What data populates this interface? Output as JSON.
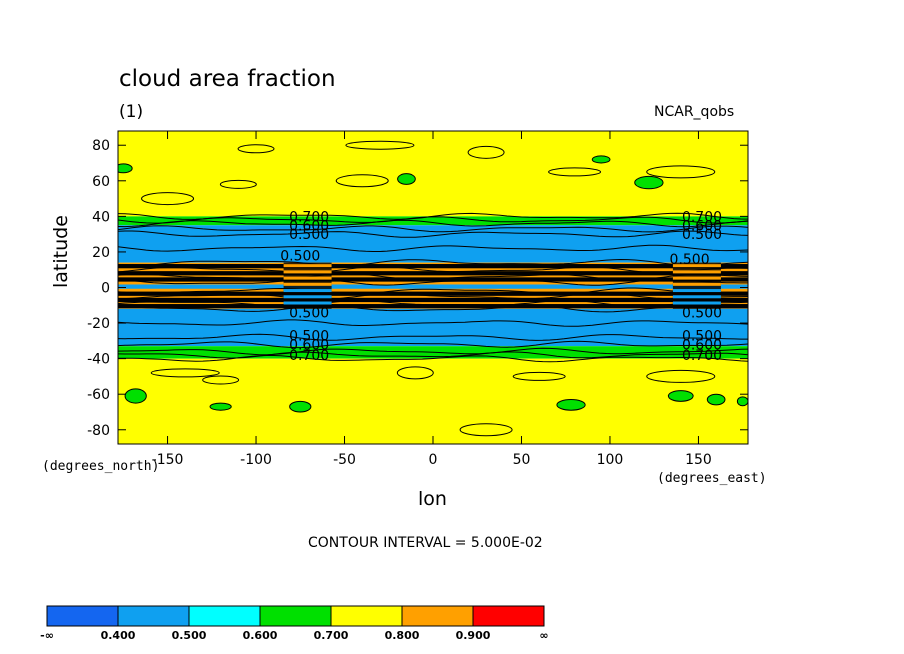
{
  "chart_data": {
    "type": "heatmap",
    "title": "cloud area fraction",
    "subtitle": "(1)",
    "dataset": "NCAR_qobs",
    "xlabel": "lon",
    "ylabel": "latitude",
    "x_units": "(degrees_east)",
    "y_units": "(degrees_north)",
    "xlim": [
      -178,
      178
    ],
    "ylim": [
      -88,
      88
    ],
    "x_ticks": [
      -150,
      -100,
      -50,
      0,
      50,
      100,
      150
    ],
    "x_tick_labels": [
      "-150",
      "-100",
      "-50",
      "0",
      "50",
      "100",
      "150"
    ],
    "y_ticks": [
      80,
      60,
      40,
      20,
      0,
      -20,
      -40,
      -60,
      -80
    ],
    "y_tick_labels": [
      "80",
      "60",
      "40",
      "20",
      "0",
      "-20",
      "-40",
      "-60",
      "-80"
    ],
    "contour_interval": "CONTOUR INTERVAL = 5.000E-02",
    "colorbar": {
      "colors": [
        "#1466f0",
        "#0fa0f0",
        "#00ffff",
        "#00e000",
        "#ffff00",
        "#ffa000",
        "#ff0000"
      ],
      "labels": [
        "-∞",
        "0.400",
        "0.500",
        "0.600",
        "0.700",
        "0.800",
        "0.900",
        "∞"
      ]
    },
    "zonal_bands": [
      {
        "lat_max": 88,
        "lat_min": 40,
        "level": 0.75
      },
      {
        "lat_max": 40,
        "lat_min": 35,
        "level": 0.65
      },
      {
        "lat_max": 35,
        "lat_min": 14,
        "level": 0.45
      },
      {
        "lat_max": 14,
        "lat_min": -12,
        "level": 0.85
      },
      {
        "lat_max": -12,
        "lat_min": -33,
        "level": 0.45
      },
      {
        "lat_max": -33,
        "lat_min": -40,
        "level": 0.65
      },
      {
        "lat_max": -40,
        "lat_min": -88,
        "level": 0.75
      }
    ],
    "contour_lines": [
      {
        "lat": 40,
        "level": 0.7
      },
      {
        "lat": 38,
        "level": 0.65
      },
      {
        "lat": 36,
        "level": 0.6
      },
      {
        "lat": 33,
        "level": 0.55
      },
      {
        "lat": 30,
        "level": 0.5
      },
      {
        "lat": 22,
        "level": 0.45
      },
      {
        "lat": 14,
        "level": 0.5
      },
      {
        "lat": 10,
        "level": 0.6
      },
      {
        "lat": 6,
        "level": 0.7
      },
      {
        "lat": 3,
        "level": 0.8
      },
      {
        "lat": -2,
        "level": 0.8
      },
      {
        "lat": -5,
        "level": 0.7
      },
      {
        "lat": -9,
        "level": 0.6
      },
      {
        "lat": -12,
        "level": 0.5
      },
      {
        "lat": -20,
        "level": 0.45
      },
      {
        "lat": -28,
        "level": 0.5
      },
      {
        "lat": -32,
        "level": 0.55
      },
      {
        "lat": -36,
        "level": 0.6
      },
      {
        "lat": -38,
        "level": 0.65
      },
      {
        "lat": -40,
        "level": 0.7
      }
    ],
    "contour_labels": [
      {
        "lon": -70,
        "lat": 40,
        "text": "0.700"
      },
      {
        "lon": -70,
        "lat": 35,
        "text": "0.600"
      },
      {
        "lon": -70,
        "lat": 30,
        "text": "0.500"
      },
      {
        "lon": -75,
        "lat": 18,
        "text": "0.500"
      },
      {
        "lon": -70,
        "lat": -14,
        "text": "0.500"
      },
      {
        "lon": -70,
        "lat": -27,
        "text": "0.500"
      },
      {
        "lon": -70,
        "lat": -32,
        "text": "0.600"
      },
      {
        "lon": -70,
        "lat": -38,
        "text": "0.700"
      },
      {
        "lon": 152,
        "lat": 40,
        "text": "0.700"
      },
      {
        "lon": 152,
        "lat": 35,
        "text": "0.600"
      },
      {
        "lon": 152,
        "lat": 30,
        "text": "0.500"
      },
      {
        "lon": 145,
        "lat": 16,
        "text": "0.500"
      },
      {
        "lon": 152,
        "lat": -14,
        "text": "0.500"
      },
      {
        "lon": 152,
        "lat": -27,
        "text": "0.500"
      },
      {
        "lon": 152,
        "lat": -32,
        "text": "0.600"
      },
      {
        "lon": 152,
        "lat": -38,
        "text": "0.700"
      }
    ],
    "label_clusters": [
      {
        "lon": -72,
        "lat_min": -12,
        "lat_max": 14
      },
      {
        "lon": 148,
        "lat_min": -12,
        "lat_max": 14
      }
    ],
    "patches": [
      {
        "lon": -175,
        "lat": 67,
        "rlon": 5,
        "rlat": 2.5,
        "level": 0.65
      },
      {
        "lon": -15,
        "lat": 61,
        "rlon": 5,
        "rlat": 3,
        "level": 0.65
      },
      {
        "lon": 95,
        "lat": 72,
        "rlon": 5,
        "rlat": 2,
        "level": 0.65
      },
      {
        "lon": 122,
        "lat": 59,
        "rlon": 8,
        "rlat": 3.5,
        "level": 0.65
      },
      {
        "lon": -168,
        "lat": -61,
        "rlon": 6,
        "rlat": 4,
        "level": 0.65
      },
      {
        "lon": -120,
        "lat": -67,
        "rlon": 6,
        "rlat": 2,
        "level": 0.65
      },
      {
        "lon": -75,
        "lat": -67,
        "rlon": 6,
        "rlat": 3,
        "level": 0.65
      },
      {
        "lon": 78,
        "lat": -66,
        "rlon": 8,
        "rlat": 3,
        "level": 0.65
      },
      {
        "lon": 140,
        "lat": -61,
        "rlon": 7,
        "rlat": 3,
        "level": 0.65
      },
      {
        "lon": 160,
        "lat": -63,
        "rlon": 5,
        "rlat": 3,
        "level": 0.65
      },
      {
        "lon": 175,
        "lat": -64,
        "rlon": 3,
        "rlat": 2.5,
        "level": 0.65
      }
    ]
  }
}
